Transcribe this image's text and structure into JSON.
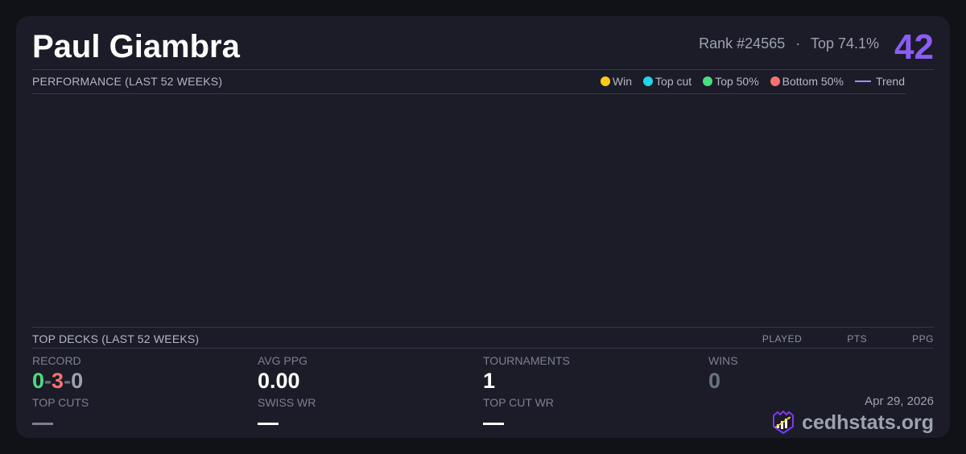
{
  "player": {
    "name": "Paul Giambra",
    "rank": "Rank #24565",
    "separator": "·",
    "top": "Top 74.1%",
    "score": "42"
  },
  "performance": {
    "title": "PERFORMANCE (LAST 52 WEEKS)",
    "legend": [
      {
        "label": "Win",
        "color": "#facc15"
      },
      {
        "label": "Top cut",
        "color": "#22d3ee"
      },
      {
        "label": "Top 50%",
        "color": "#4ade80"
      },
      {
        "label": "Bottom 50%",
        "color": "#f87171"
      },
      {
        "label": "Trend",
        "color": "#a78bfa"
      }
    ]
  },
  "top_decks": {
    "title": "TOP DECKS (LAST 52 WEEKS)",
    "columns": [
      "PLAYED",
      "PTS",
      "PPG"
    ]
  },
  "stats": {
    "record": {
      "label": "RECORD",
      "wins": "0",
      "losses": "3",
      "draws": "0",
      "sep": "-"
    },
    "avg_ppg": {
      "label": "AVG PPG",
      "value": "0.00"
    },
    "tournaments": {
      "label": "TOURNAMENTS",
      "value": "1"
    },
    "wins": {
      "label": "WINS",
      "value": "0"
    },
    "top_cuts": {
      "label": "TOP CUTS",
      "value": "—"
    },
    "swiss_wr": {
      "label": "SWISS WR",
      "value": "—"
    },
    "top_cut_wr": {
      "label": "TOP CUT WR",
      "value": "—"
    }
  },
  "footer": {
    "date": "Apr 29, 2026",
    "brand": "cedhstats.org"
  },
  "colors": {
    "accent": "#8b5cf6",
    "win": "#4ade80",
    "loss": "#f87171"
  }
}
